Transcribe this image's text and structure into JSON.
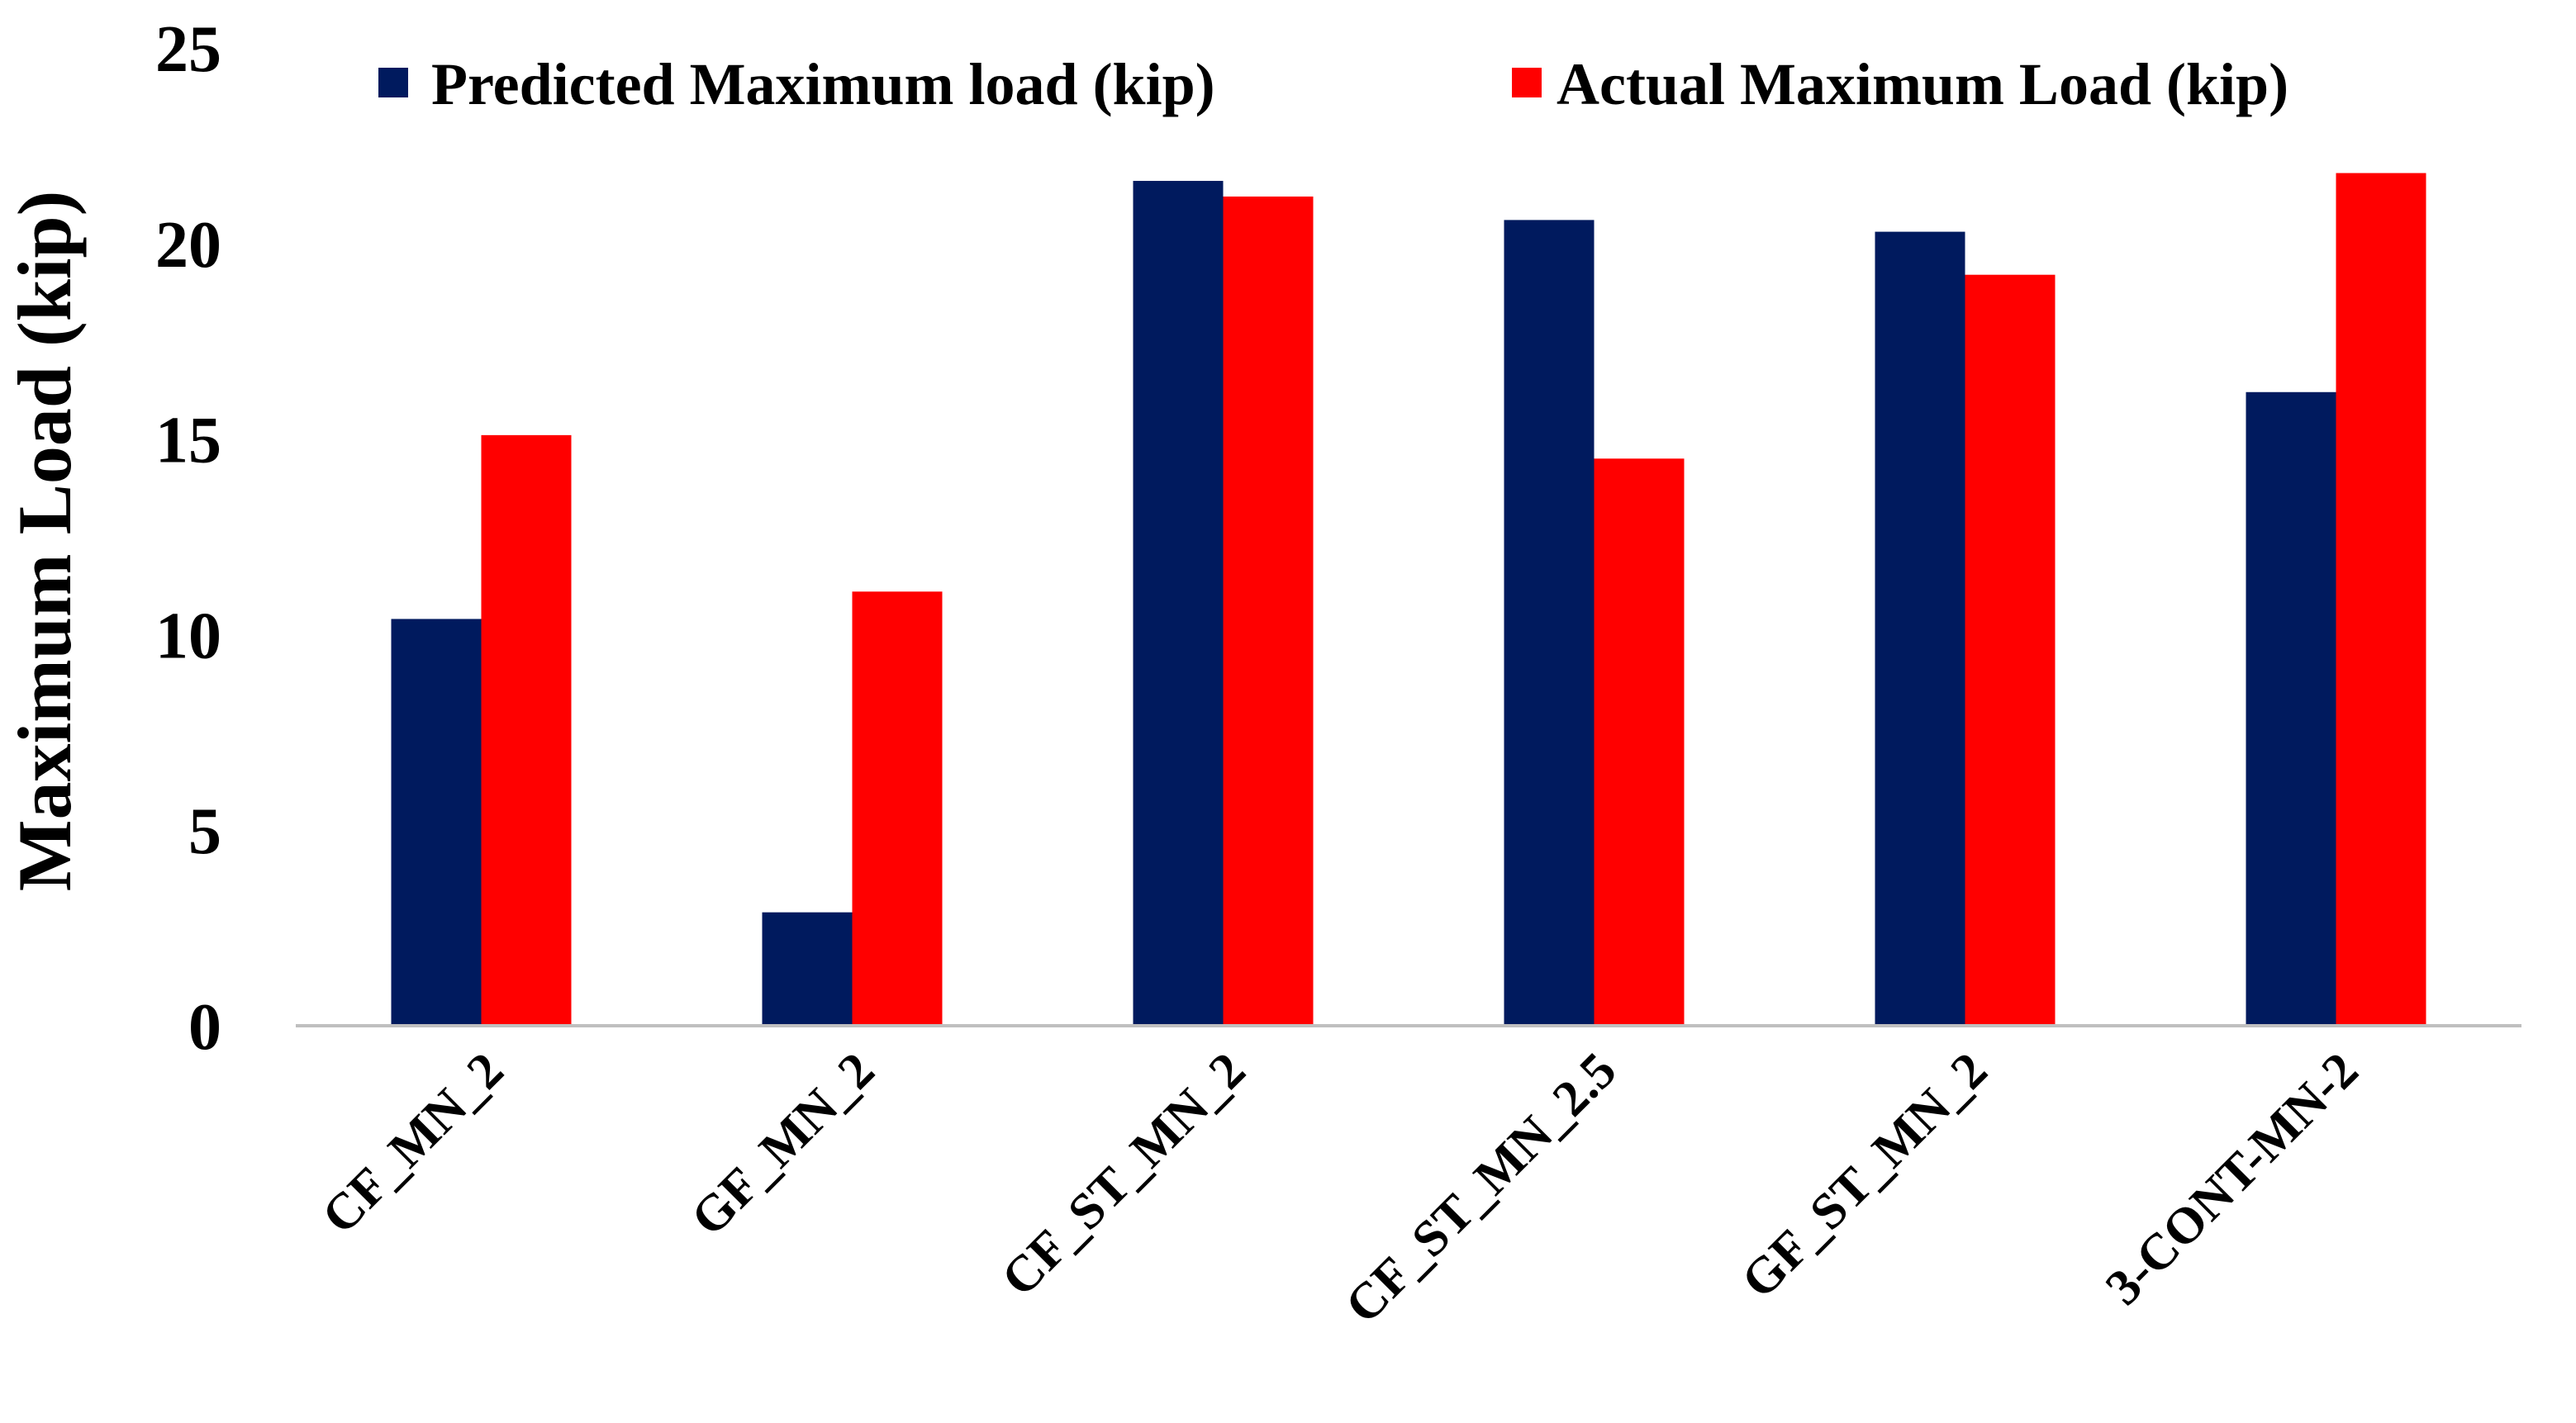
{
  "chart_data": {
    "type": "bar",
    "title": "",
    "xlabel": "",
    "ylabel": "Maximum Load (kip)",
    "ylim": [
      0,
      25
    ],
    "yticks": [
      "0",
      "5",
      "10",
      "15",
      "20",
      "25"
    ],
    "grid": false,
    "legend_position": "top",
    "categories": [
      "CF_MN_2",
      "GF_MN_2",
      "CF_ST_MN_2",
      "CF_ST_MN_2.5",
      "GF_ST_MN_2",
      "3-CONT-MN-2"
    ],
    "series": [
      {
        "name": "Predicted Maximum load (kip)",
        "color": "#001a5e",
        "values": [
          10.4,
          2.9,
          21.6,
          20.6,
          20.3,
          16.2
        ]
      },
      {
        "name": "Actual Maximum Load (kip)",
        "color": "#ff0000",
        "values": [
          15.1,
          11.1,
          21.2,
          14.5,
          19.2,
          21.8
        ]
      }
    ]
  }
}
